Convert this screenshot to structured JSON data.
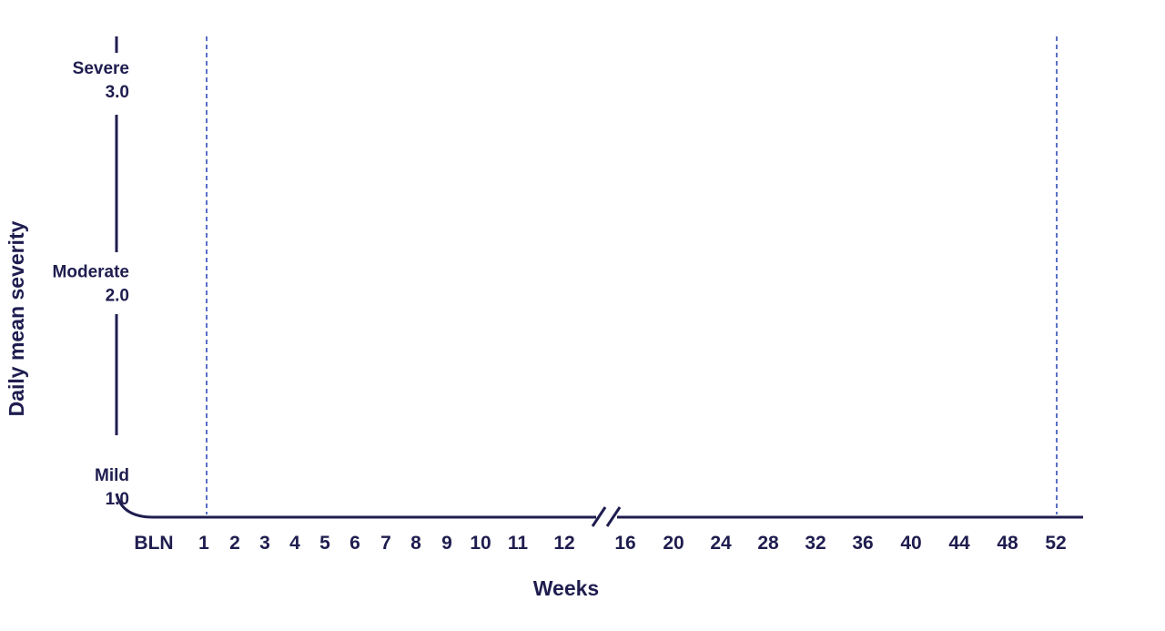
{
  "chart_data": {
    "type": "line",
    "title": "",
    "xlabel": "Weeks",
    "ylabel": "Daily mean severity",
    "ylim": [
      1.0,
      3.0
    ],
    "x_ticks": [
      "BLN",
      "1",
      "2",
      "3",
      "4",
      "5",
      "6",
      "7",
      "8",
      "9",
      "10",
      "11",
      "12",
      "16",
      "20",
      "24",
      "28",
      "32",
      "36",
      "40",
      "44",
      "48",
      "52"
    ],
    "x_axis_break_between": [
      "12",
      "16"
    ],
    "y_ticks": [
      {
        "value": 3.0,
        "name": "Severe",
        "label": "3.0"
      },
      {
        "value": 2.0,
        "name": "Moderate",
        "label": "2.0"
      },
      {
        "value": 1.0,
        "name": "Mild",
        "label": "1.0"
      }
    ],
    "reference_lines": [
      {
        "x": "1",
        "style": "dashed"
      },
      {
        "x": "52",
        "style": "dashed"
      }
    ],
    "series": [],
    "grid": false,
    "colors": {
      "axis": "#1f1d4f",
      "text": "#1f1d4f",
      "reference": "#5a6fc7"
    }
  }
}
